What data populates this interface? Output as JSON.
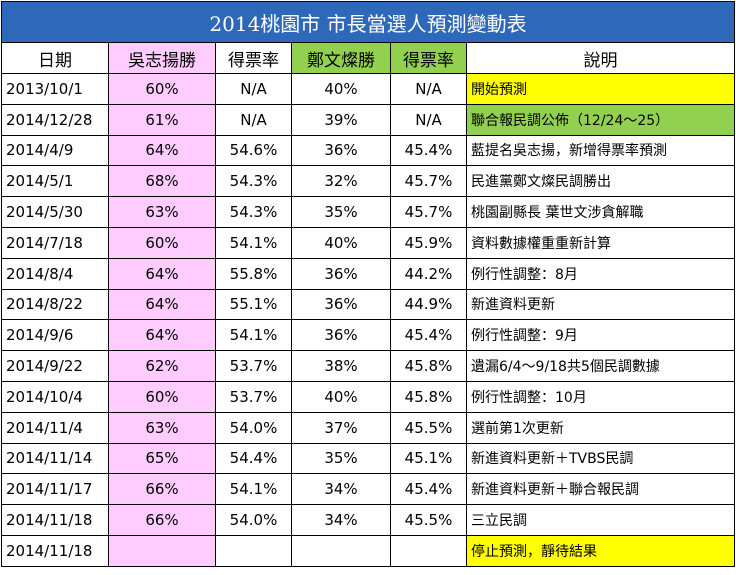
{
  "chart_data": {
    "type": "table",
    "title": "2014桃園市 市長當選人預測變動表",
    "columns": [
      "日期",
      "吳志揚勝",
      "得票率",
      "鄭文燦勝",
      "得票率",
      "說明"
    ],
    "rows": [
      {
        "date": "2013/10/1",
        "wu_win": "60%",
        "wu_vote": "N/A",
        "cheng_win": "40%",
        "cheng_vote": "N/A",
        "note": "開始預測",
        "note_color": "yellow"
      },
      {
        "date": "2014/12/28",
        "wu_win": "61%",
        "wu_vote": "N/A",
        "cheng_win": "39%",
        "cheng_vote": "N/A",
        "note": "聯合報民調公佈（12/24～25）",
        "note_color": "green"
      },
      {
        "date": "2014/4/9",
        "wu_win": "64%",
        "wu_vote": "54.6%",
        "cheng_win": "36%",
        "cheng_vote": "45.4%",
        "note": "藍提名吳志揚，新增得票率預測",
        "note_color": ""
      },
      {
        "date": "2014/5/1",
        "wu_win": "68%",
        "wu_vote": "54.3%",
        "cheng_win": "32%",
        "cheng_vote": "45.7%",
        "note": "民進黨鄭文燦民調勝出",
        "note_color": ""
      },
      {
        "date": "2014/5/30",
        "wu_win": "63%",
        "wu_vote": "54.3%",
        "cheng_win": "35%",
        "cheng_vote": "45.7%",
        "note": "桃園副縣長 葉世文涉貪解職",
        "note_color": ""
      },
      {
        "date": "2014/7/18",
        "wu_win": "60%",
        "wu_vote": "54.1%",
        "cheng_win": "40%",
        "cheng_vote": "45.9%",
        "note": "資料數據權重重新計算",
        "note_color": ""
      },
      {
        "date": "2014/8/4",
        "wu_win": "64%",
        "wu_vote": "55.8%",
        "cheng_win": "36%",
        "cheng_vote": "44.2%",
        "note": "例行性調整：8月",
        "note_color": ""
      },
      {
        "date": "2014/8/22",
        "wu_win": "64%",
        "wu_vote": "55.1%",
        "cheng_win": "36%",
        "cheng_vote": "44.9%",
        "note": "新進資料更新",
        "note_color": ""
      },
      {
        "date": "2014/9/6",
        "wu_win": "64%",
        "wu_vote": "54.1%",
        "cheng_win": "36%",
        "cheng_vote": "45.4%",
        "note": "例行性調整：9月",
        "note_color": ""
      },
      {
        "date": "2014/9/22",
        "wu_win": "62%",
        "wu_vote": "53.7%",
        "cheng_win": "38%",
        "cheng_vote": "45.8%",
        "note": "遺漏6/4～9/18共5個民調數據",
        "note_color": ""
      },
      {
        "date": "2014/10/4",
        "wu_win": "60%",
        "wu_vote": "53.7%",
        "cheng_win": "40%",
        "cheng_vote": "45.8%",
        "note": "例行性調整：10月",
        "note_color": ""
      },
      {
        "date": "2014/11/4",
        "wu_win": "63%",
        "wu_vote": "54.0%",
        "cheng_win": "37%",
        "cheng_vote": "45.5%",
        "note": "選前第1次更新",
        "note_color": ""
      },
      {
        "date": "2014/11/14",
        "wu_win": "65%",
        "wu_vote": "54.4%",
        "cheng_win": "35%",
        "cheng_vote": "45.1%",
        "note": "新進資料更新＋TVBS民調",
        "note_color": ""
      },
      {
        "date": "2014/11/17",
        "wu_win": "66%",
        "wu_vote": "54.1%",
        "cheng_win": "34%",
        "cheng_vote": "45.4%",
        "note": "新進資料更新＋聯合報民調",
        "note_color": ""
      },
      {
        "date": "2014/11/18",
        "wu_win": "66%",
        "wu_vote": "54.0%",
        "cheng_win": "34%",
        "cheng_vote": "45.5%",
        "note": "三立民調",
        "note_color": ""
      },
      {
        "date": "2014/11/18",
        "wu_win": "",
        "wu_vote": "",
        "cheng_win": "",
        "cheng_vote": "",
        "note": "停止預測，靜待結果",
        "note_color": "yellow"
      }
    ]
  },
  "colors": {
    "title_bg": "#2e68b8",
    "wu_bg": "#ffccff",
    "cheng_bg": "#92d050",
    "highlight_yellow": "#ffff00"
  }
}
